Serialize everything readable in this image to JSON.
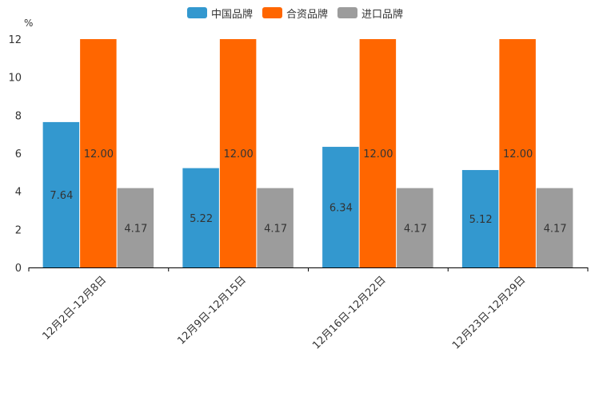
{
  "chart_data": {
    "type": "bar",
    "ylabel": "%",
    "ylim": [
      0,
      12
    ],
    "yticks": [
      0,
      2,
      4,
      6,
      8,
      10,
      12
    ],
    "categories": [
      "12月2日-12月8日",
      "12月9日-12月15日",
      "12月16日-12月22日",
      "12月23日-12月29日"
    ],
    "series": [
      {
        "name": "中国品牌",
        "color": "#3398cf",
        "values": [
          7.64,
          5.22,
          6.34,
          5.12
        ],
        "labels": [
          "7.64",
          "5.22",
          "6.34",
          "5.12"
        ]
      },
      {
        "name": "合资品牌",
        "color": "#ff6600",
        "values": [
          12.0,
          12.0,
          12.0,
          12.0
        ],
        "labels": [
          "12.00",
          "12.00",
          "12.00",
          "12.00"
        ]
      },
      {
        "name": "进口品牌",
        "color": "#9c9c9c",
        "values": [
          4.17,
          4.17,
          4.17,
          4.17
        ],
        "labels": [
          "4.17",
          "4.17",
          "4.17",
          "4.17"
        ]
      }
    ],
    "legend_position": "top-center"
  }
}
